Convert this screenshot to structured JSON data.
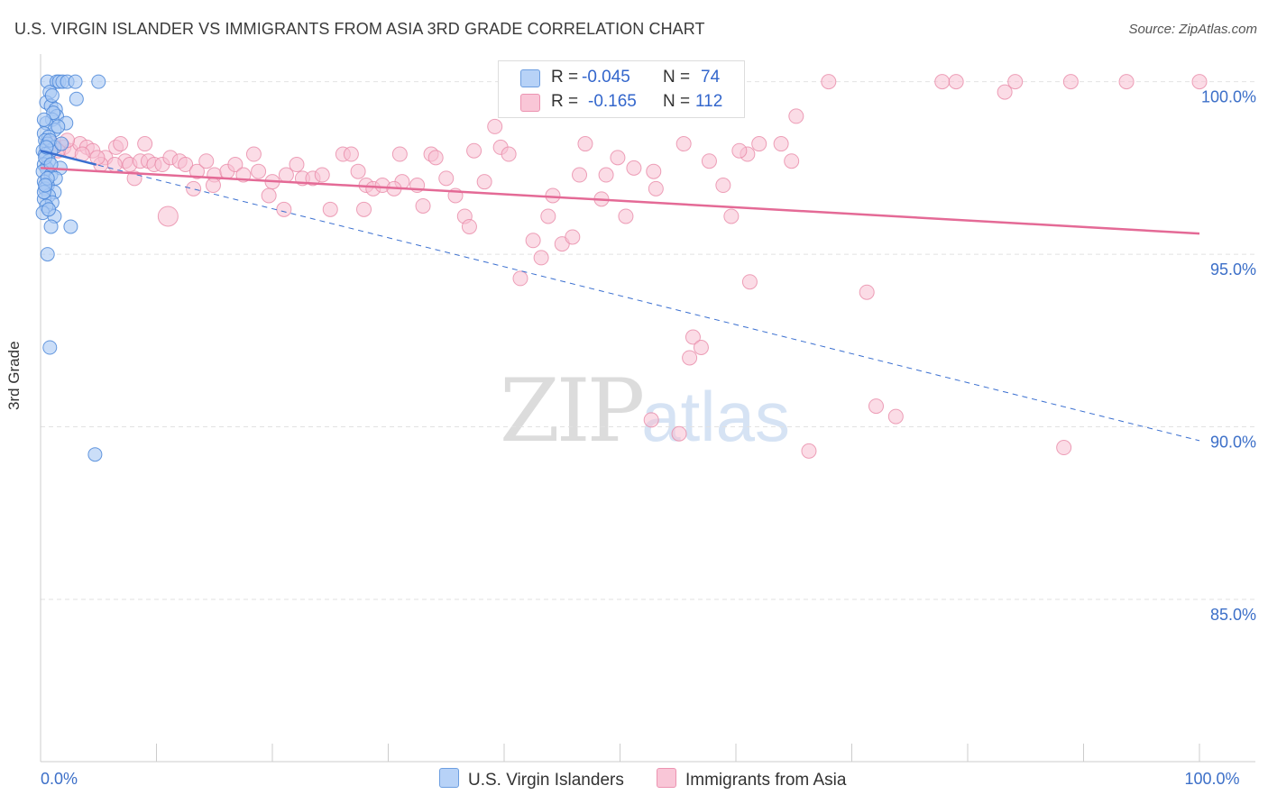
{
  "title": "U.S. VIRGIN ISLANDER VS IMMIGRANTS FROM ASIA 3RD GRADE CORRELATION CHART",
  "source": "Source: ZipAtlas.com",
  "watermark": {
    "zip": "ZIP",
    "atlas": "atlas"
  },
  "legend_top": {
    "rows": [
      {
        "r_label": "R =",
        "r_value": "-0.045",
        "n_label": "N =",
        "n_value": "74"
      },
      {
        "r_label": "R =",
        "r_value": "-0.165",
        "n_label": "N =",
        "n_value": "112"
      }
    ]
  },
  "legend_bottom": {
    "items": [
      {
        "label": "U.S. Virgin Islanders"
      },
      {
        "label": "Immigrants from Asia"
      }
    ]
  },
  "chart_data": {
    "type": "scatter",
    "title": "U.S. VIRGIN ISLANDER VS IMMIGRANTS FROM ASIA 3RD GRADE CORRELATION CHART",
    "xlabel": "",
    "ylabel": "3rd Grade",
    "xlim": [
      0,
      100
    ],
    "ylim": [
      80.3,
      100.8
    ],
    "x_tick_labels": [
      {
        "value": 0,
        "label": "0.0%"
      },
      {
        "value": 100,
        "label": "100.0%"
      }
    ],
    "y_tick_labels": [
      {
        "value": 100,
        "label": "100.0%"
      },
      {
        "value": 95,
        "label": "95.0%"
      },
      {
        "value": 90,
        "label": "90.0%"
      },
      {
        "value": 85,
        "label": "85.0%"
      }
    ],
    "colors": {
      "blue_fill": "#a9c8f4",
      "blue_stroke": "#4a86d8",
      "blue_line": "#3a6fd0",
      "pink_fill": "#f8bfd2",
      "pink_stroke": "#e889a8",
      "pink_line": "#e46a96",
      "grid": "#e2e2e2",
      "tick_text": "#3c6fc8"
    },
    "series": [
      {
        "name": "U.S. Virgin Islanders",
        "color": "#a9c8f4",
        "trend": {
          "x": [
            0.0,
            100.0
          ],
          "y": [
            98.0,
            89.6
          ],
          "solid_until_x": 4.8
        },
        "points": [
          [
            0.6,
            100.0
          ],
          [
            1.4,
            100.0
          ],
          [
            1.6,
            100.0
          ],
          [
            1.9,
            100.0
          ],
          [
            2.3,
            100.0
          ],
          [
            3.0,
            100.0
          ],
          [
            5.0,
            100.0
          ],
          [
            0.8,
            99.7
          ],
          [
            3.1,
            99.5
          ],
          [
            0.5,
            99.4
          ],
          [
            0.9,
            99.3
          ],
          [
            1.3,
            99.2
          ],
          [
            1.4,
            99.0
          ],
          [
            1.0,
            98.9
          ],
          [
            0.5,
            98.8
          ],
          [
            2.2,
            98.8
          ],
          [
            1.2,
            98.6
          ],
          [
            0.3,
            98.5
          ],
          [
            0.7,
            98.4
          ],
          [
            0.4,
            98.3
          ],
          [
            0.6,
            98.2
          ],
          [
            1.2,
            98.1
          ],
          [
            0.2,
            98.0
          ],
          [
            0.9,
            98.0
          ],
          [
            0.4,
            97.9
          ],
          [
            0.7,
            97.7
          ],
          [
            0.3,
            97.6
          ],
          [
            0.5,
            97.5
          ],
          [
            1.7,
            97.5
          ],
          [
            0.2,
            97.4
          ],
          [
            0.9,
            97.3
          ],
          [
            1.3,
            97.2
          ],
          [
            0.3,
            97.1
          ],
          [
            0.6,
            97.0
          ],
          [
            0.4,
            96.9
          ],
          [
            1.2,
            96.8
          ],
          [
            0.7,
            96.7
          ],
          [
            0.3,
            96.6
          ],
          [
            1.0,
            96.5
          ],
          [
            0.5,
            96.4
          ],
          [
            0.2,
            96.2
          ],
          [
            1.2,
            96.1
          ],
          [
            0.9,
            95.8
          ],
          [
            2.6,
            95.8
          ],
          [
            0.6,
            95.0
          ],
          [
            0.8,
            92.3
          ],
          [
            4.7,
            89.2
          ],
          [
            0.4,
            97.8
          ],
          [
            0.8,
            98.3
          ],
          [
            1.5,
            98.7
          ],
          [
            0.3,
            96.8
          ],
          [
            0.9,
            97.6
          ],
          [
            0.5,
            98.1
          ],
          [
            1.1,
            99.1
          ],
          [
            0.6,
            97.2
          ],
          [
            0.3,
            98.9
          ],
          [
            0.7,
            96.3
          ],
          [
            1.8,
            98.2
          ],
          [
            0.4,
            97.0
          ],
          [
            1.0,
            99.6
          ]
        ]
      },
      {
        "name": "Immigrants from Asia",
        "color": "#f8bfd2",
        "trend": {
          "x": [
            0.0,
            100.0
          ],
          "y": [
            97.5,
            95.6
          ]
        },
        "points": [
          [
            1.0,
            98.2
          ],
          [
            2.0,
            98.1
          ],
          [
            2.6,
            98.0
          ],
          [
            3.4,
            98.2
          ],
          [
            4.0,
            98.1
          ],
          [
            4.5,
            98.0
          ],
          [
            5.6,
            97.8
          ],
          [
            6.5,
            98.1
          ],
          [
            6.9,
            98.2
          ],
          [
            5.2,
            97.6
          ],
          [
            7.3,
            97.7
          ],
          [
            7.7,
            97.6
          ],
          [
            8.6,
            97.7
          ],
          [
            9.3,
            97.7
          ],
          [
            9.8,
            97.6
          ],
          [
            10.5,
            97.6
          ],
          [
            11.2,
            97.8
          ],
          [
            12.0,
            97.7
          ],
          [
            12.5,
            97.6
          ],
          [
            13.5,
            97.4
          ],
          [
            14.3,
            97.7
          ],
          [
            15.0,
            97.3
          ],
          [
            16.1,
            97.4
          ],
          [
            16.8,
            97.6
          ],
          [
            17.5,
            97.3
          ],
          [
            18.4,
            97.9
          ],
          [
            18.8,
            97.4
          ],
          [
            20.0,
            97.1
          ],
          [
            21.2,
            97.3
          ],
          [
            22.1,
            97.6
          ],
          [
            22.6,
            97.2
          ],
          [
            23.5,
            97.2
          ],
          [
            24.3,
            97.3
          ],
          [
            25.0,
            96.3
          ],
          [
            26.1,
            97.9
          ],
          [
            26.8,
            97.9
          ],
          [
            27.4,
            97.4
          ],
          [
            28.1,
            97.0
          ],
          [
            28.7,
            96.9
          ],
          [
            29.5,
            97.0
          ],
          [
            31.0,
            97.9
          ],
          [
            31.2,
            97.1
          ],
          [
            32.5,
            97.0
          ],
          [
            33.0,
            96.4
          ],
          [
            33.7,
            97.9
          ],
          [
            34.1,
            97.8
          ],
          [
            35.0,
            97.2
          ],
          [
            35.8,
            96.7
          ],
          [
            36.6,
            96.1
          ],
          [
            37.4,
            98.0
          ],
          [
            38.3,
            97.1
          ],
          [
            39.2,
            98.7
          ],
          [
            39.7,
            98.1
          ],
          [
            40.4,
            97.9
          ],
          [
            41.4,
            94.3
          ],
          [
            42.5,
            95.4
          ],
          [
            43.2,
            94.9
          ],
          [
            44.2,
            96.7
          ],
          [
            45.0,
            95.3
          ],
          [
            45.9,
            95.5
          ],
          [
            46.5,
            97.3
          ],
          [
            47.0,
            98.2
          ],
          [
            48.4,
            96.6
          ],
          [
            48.8,
            97.3
          ],
          [
            49.8,
            97.8
          ],
          [
            50.5,
            96.1
          ],
          [
            51.2,
            97.5
          ],
          [
            52.9,
            97.4
          ],
          [
            53.1,
            96.9
          ],
          [
            56.3,
            92.6
          ],
          [
            56.0,
            92.0
          ],
          [
            57.0,
            92.3
          ],
          [
            58.9,
            97.0
          ],
          [
            59.6,
            96.1
          ],
          [
            61.0,
            97.9
          ],
          [
            62.0,
            98.2
          ],
          [
            63.9,
            98.2
          ],
          [
            65.2,
            99.0
          ],
          [
            68.0,
            100.0
          ],
          [
            71.3,
            93.9
          ],
          [
            72.1,
            90.6
          ],
          [
            73.8,
            90.3
          ],
          [
            61.2,
            94.2
          ],
          [
            66.3,
            89.3
          ],
          [
            55.1,
            89.8
          ],
          [
            52.7,
            90.2
          ],
          [
            77.8,
            100.0
          ],
          [
            79.0,
            100.0
          ],
          [
            83.2,
            99.7
          ],
          [
            84.1,
            100.0
          ],
          [
            88.9,
            100.0
          ],
          [
            93.7,
            100.0
          ],
          [
            100.0,
            100.0
          ],
          [
            88.3,
            89.4
          ],
          [
            11.0,
            96.1
          ],
          [
            6.4,
            97.6
          ],
          [
            2.3,
            98.3
          ],
          [
            3.6,
            97.9
          ],
          [
            8.1,
            97.2
          ],
          [
            13.2,
            96.9
          ],
          [
            19.7,
            96.7
          ],
          [
            21.0,
            96.3
          ],
          [
            27.9,
            96.3
          ],
          [
            30.5,
            96.9
          ],
          [
            37.0,
            95.8
          ],
          [
            43.8,
            96.1
          ],
          [
            55.5,
            98.2
          ],
          [
            57.7,
            97.7
          ],
          [
            60.3,
            98.0
          ],
          [
            64.8,
            97.7
          ],
          [
            1.5,
            98.0
          ],
          [
            4.9,
            97.8
          ],
          [
            9.0,
            98.2
          ],
          [
            14.9,
            97.0
          ]
        ]
      }
    ]
  }
}
